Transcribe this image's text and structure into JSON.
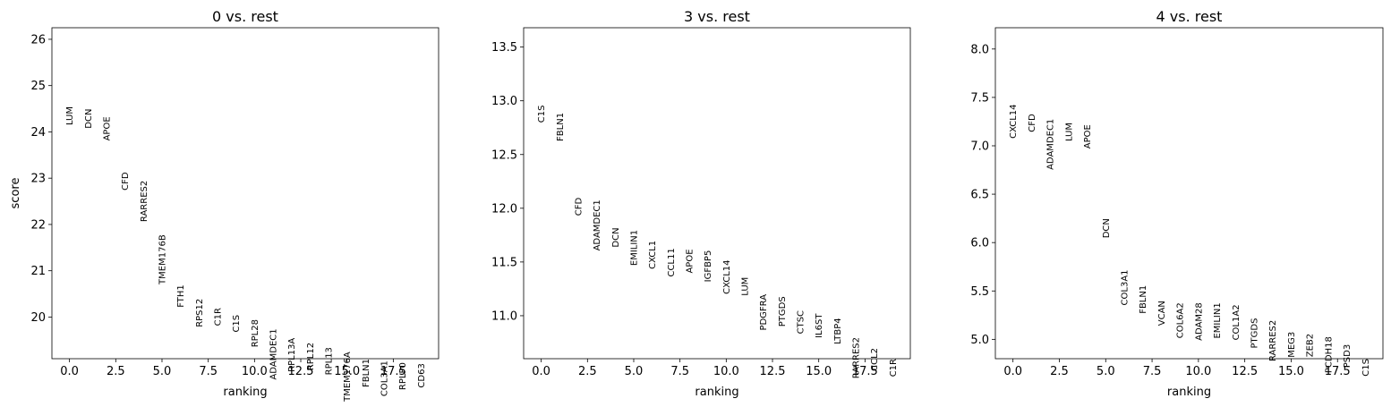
{
  "chart_data": [
    {
      "type": "scatter",
      "title": "0 vs. rest",
      "xlabel": "ranking",
      "ylabel": "score",
      "xlim": [
        -0.95,
        19.95
      ],
      "ylim": [
        19.1,
        26.25
      ],
      "xticks": [
        0,
        2.5,
        5,
        7.5,
        10,
        12.5,
        15,
        17.5
      ],
      "xtick_labels": [
        "0.0",
        "2.5",
        "5.0",
        "7.5",
        "10.0",
        "12.5",
        "15.0",
        "17.5"
      ],
      "yticks": [
        20,
        21,
        22,
        23,
        24,
        25,
        26
      ],
      "ytick_labels": [
        "20",
        "21",
        "22",
        "23",
        "24",
        "25",
        "26"
      ],
      "genes": [
        "LUM",
        "DCN",
        "APOE",
        "CFD",
        "RARRES2",
        "TMEM176B",
        "FTH1",
        "RPS12",
        "C1R",
        "C1S",
        "RPL28",
        "ADAMDEC1",
        "RPL13A",
        "RPL12",
        "RPL13",
        "TMEM176A",
        "FBLN1",
        "COL3A1",
        "RPLP0",
        "CD63"
      ],
      "scores": [
        24.55,
        24.5,
        24.33,
        23.13,
        22.95,
        21.78,
        20.7,
        20.4,
        20.2,
        20.05,
        19.95,
        19.75,
        19.55,
        19.45,
        19.35,
        19.25,
        19.1,
        19.06,
        19.02,
        19.0
      ]
    },
    {
      "type": "scatter",
      "title": "3 vs. rest",
      "xlabel": "ranking",
      "ylabel": "",
      "xlim": [
        -0.95,
        19.95
      ],
      "ylim": [
        10.6,
        13.68
      ],
      "xticks": [
        0,
        2.5,
        5,
        7.5,
        10,
        12.5,
        15,
        17.5
      ],
      "xtick_labels": [
        "0.0",
        "2.5",
        "5.0",
        "7.5",
        "10.0",
        "12.5",
        "15.0",
        "17.5"
      ],
      "yticks": [
        11.0,
        11.5,
        12.0,
        12.5,
        13.0,
        13.5
      ],
      "ytick_labels": [
        "11.0",
        "11.5",
        "12.0",
        "12.5",
        "13.0",
        "13.5"
      ],
      "genes": [
        "C1S",
        "FBLN1",
        "CFD",
        "ADAMDEC1",
        "DCN",
        "EMILIN1",
        "CXCL1",
        "CCL11",
        "APOE",
        "IGFBP5",
        "CXCL14",
        "LUM",
        "PDGFRA",
        "PTGDS",
        "CTSC",
        "IL6ST",
        "LTBP4",
        "RARRES2",
        "CCL2",
        "C1R"
      ],
      "scores": [
        12.96,
        12.89,
        12.1,
        12.08,
        11.82,
        11.8,
        11.7,
        11.63,
        11.62,
        11.61,
        11.52,
        11.36,
        11.2,
        11.18,
        11.05,
        11.02,
        10.98,
        10.8,
        10.7,
        10.6
      ]
    },
    {
      "type": "scatter",
      "title": "4 vs. rest",
      "xlabel": "ranking",
      "ylabel": "",
      "xlim": [
        -0.95,
        19.95
      ],
      "ylim": [
        4.8,
        8.22
      ],
      "xticks": [
        0,
        2.5,
        5,
        7.5,
        10,
        12.5,
        15,
        17.5
      ],
      "xtick_labels": [
        "0.0",
        "2.5",
        "5.0",
        "7.5",
        "10.0",
        "12.5",
        "15.0",
        "17.5"
      ],
      "yticks": [
        5.0,
        5.5,
        6.0,
        6.5,
        7.0,
        7.5,
        8.0
      ],
      "ytick_labels": [
        "5.0",
        "5.5",
        "6.0",
        "6.5",
        "7.0",
        "7.5",
        "8.0"
      ],
      "genes": [
        "CXCL14",
        "CFD",
        "ADAMDEC1",
        "LUM",
        "APOE",
        "DCN",
        "COL3A1",
        "FBLN1",
        "VCAN",
        "COL6A2",
        "ADAM28",
        "EMILIN1",
        "COL1A2",
        "PTGDS",
        "RARRES2",
        "MEG3",
        "ZEB2",
        "PCDH18",
        "PSD3",
        "C1S"
      ],
      "scores": [
        7.43,
        7.33,
        7.28,
        7.24,
        7.22,
        6.25,
        5.72,
        5.56,
        5.4,
        5.38,
        5.38,
        5.38,
        5.36,
        5.22,
        5.2,
        5.08,
        5.06,
        5.03,
        4.95,
        4.8
      ]
    }
  ]
}
